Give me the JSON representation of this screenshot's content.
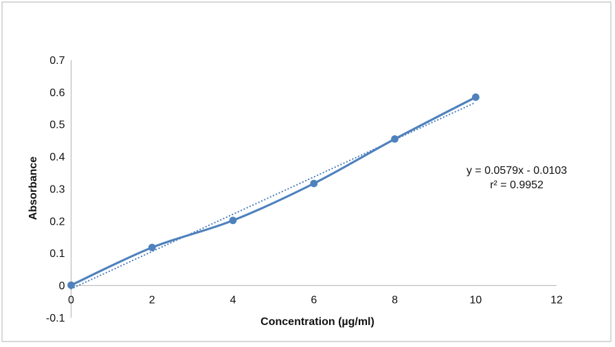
{
  "chart_data": {
    "type": "scatter",
    "title": "",
    "xlabel": "Concentration (µg/ml)",
    "ylabel": "Absorbance",
    "xlim": [
      0,
      12
    ],
    "ylim": [
      -0.1,
      0.7
    ],
    "grid": false,
    "legend": "none",
    "x": [
      0,
      2,
      4,
      6,
      8,
      10
    ],
    "series": [
      {
        "name": "Absorbance",
        "marker": "circle",
        "line": "smooth-solid",
        "values": [
          0.001,
          0.118,
          0.202,
          0.317,
          0.455,
          0.585
        ]
      }
    ],
    "trendline": {
      "slope": 0.0579,
      "intercept": -0.0103,
      "r_squared": 0.9952,
      "x_range": [
        0,
        10
      ],
      "style": "dotted"
    },
    "x_ticks": [
      0,
      2,
      4,
      6,
      8,
      10,
      12
    ],
    "x_tick_labels": [
      "0",
      "2",
      "4",
      "6",
      "8",
      "10",
      "12"
    ],
    "y_ticks": [
      -0.1,
      0,
      0.1,
      0.2,
      0.3,
      0.4,
      0.5,
      0.6,
      0.7
    ],
    "y_tick_labels": [
      "-0.1",
      "0",
      "0.1",
      "0.2",
      "0.3",
      "0.4",
      "0.5",
      "0.6",
      "0.7"
    ]
  },
  "annotation": {
    "line1": "y = 0.0579x - 0.0103",
    "line2": "r² = 0.9952"
  },
  "colors": {
    "series": "#4F81BD",
    "axis_line": "#BFBFBF",
    "text": "#111111",
    "frame_border": "#D8D8D8",
    "background": "#FFFFFF"
  }
}
